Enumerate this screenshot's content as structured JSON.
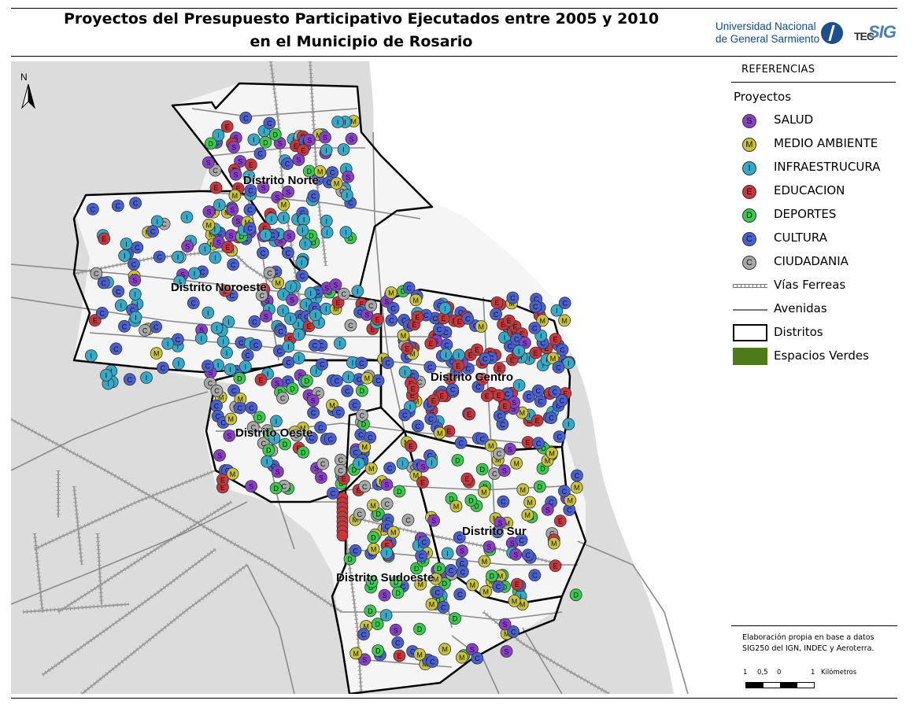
{
  "title": {
    "line1": "Proyectos del Presupuesto Participativo Ejecutados entre 2005 y 2010",
    "line2": "en el Municipio de Rosario"
  },
  "logos": {
    "university": {
      "line1": "Universidad Nacional",
      "line2": "de General Sarmiento"
    },
    "tec": {
      "left": "TEC",
      "right": "SIG"
    }
  },
  "map": {
    "north_arrow": "N",
    "districts": [
      {
        "id": "norte",
        "label": "Distrito Norte"
      },
      {
        "id": "noroeste",
        "label": "Distrito Noroeste"
      },
      {
        "id": "centro",
        "label": "Distrito Centro"
      },
      {
        "id": "oeste",
        "label": "Distrito Oeste"
      },
      {
        "id": "sur",
        "label": "Distrito Sur"
      },
      {
        "id": "sudoeste",
        "label": "Distrito Sudoeste"
      }
    ],
    "colors": {
      "land": "#dcdcdc",
      "river": "#ffffff",
      "city": "#f5f5f5",
      "district_border": "#000000",
      "avenue": "#8a8a8a",
      "rail": "#9a9a9a"
    }
  },
  "legend": {
    "heading": "REFERENCIAS",
    "subheading": "Proyectos",
    "categories": [
      {
        "key": "S",
        "label": "SALUD",
        "color": "#8a3fc8"
      },
      {
        "key": "M",
        "label": "MEDIO AMBIENTE",
        "color": "#c9c33c"
      },
      {
        "key": "I",
        "label": "INFRAESTRUCURA",
        "color": "#36a9c9"
      },
      {
        "key": "E",
        "label": "EDUCACION",
        "color": "#c9363d"
      },
      {
        "key": "D",
        "label": "DEPORTES",
        "color": "#3cc94f"
      },
      {
        "key": "C",
        "label": "CULTURA",
        "color": "#4a5fd0"
      },
      {
        "key": "C",
        "label": "CIUDADANIA",
        "color": "#a9a9a9"
      }
    ],
    "lines": [
      {
        "label": "Vías Ferreas",
        "icon": "railway-icon"
      },
      {
        "label": "Avenidas",
        "icon": "avenue-icon"
      },
      {
        "label": "Distritos",
        "icon": "district-box-icon"
      },
      {
        "label": "Espacios Verdes",
        "icon": "green-space-icon"
      }
    ]
  },
  "source": {
    "line1": "Elaboración propia en base a datos",
    "line2": "SIG250 del IGN, INDEC y Aeroterra."
  },
  "scale": {
    "labels": [
      "1",
      "0,5",
      "0",
      "1",
      "Kilómetros"
    ]
  }
}
